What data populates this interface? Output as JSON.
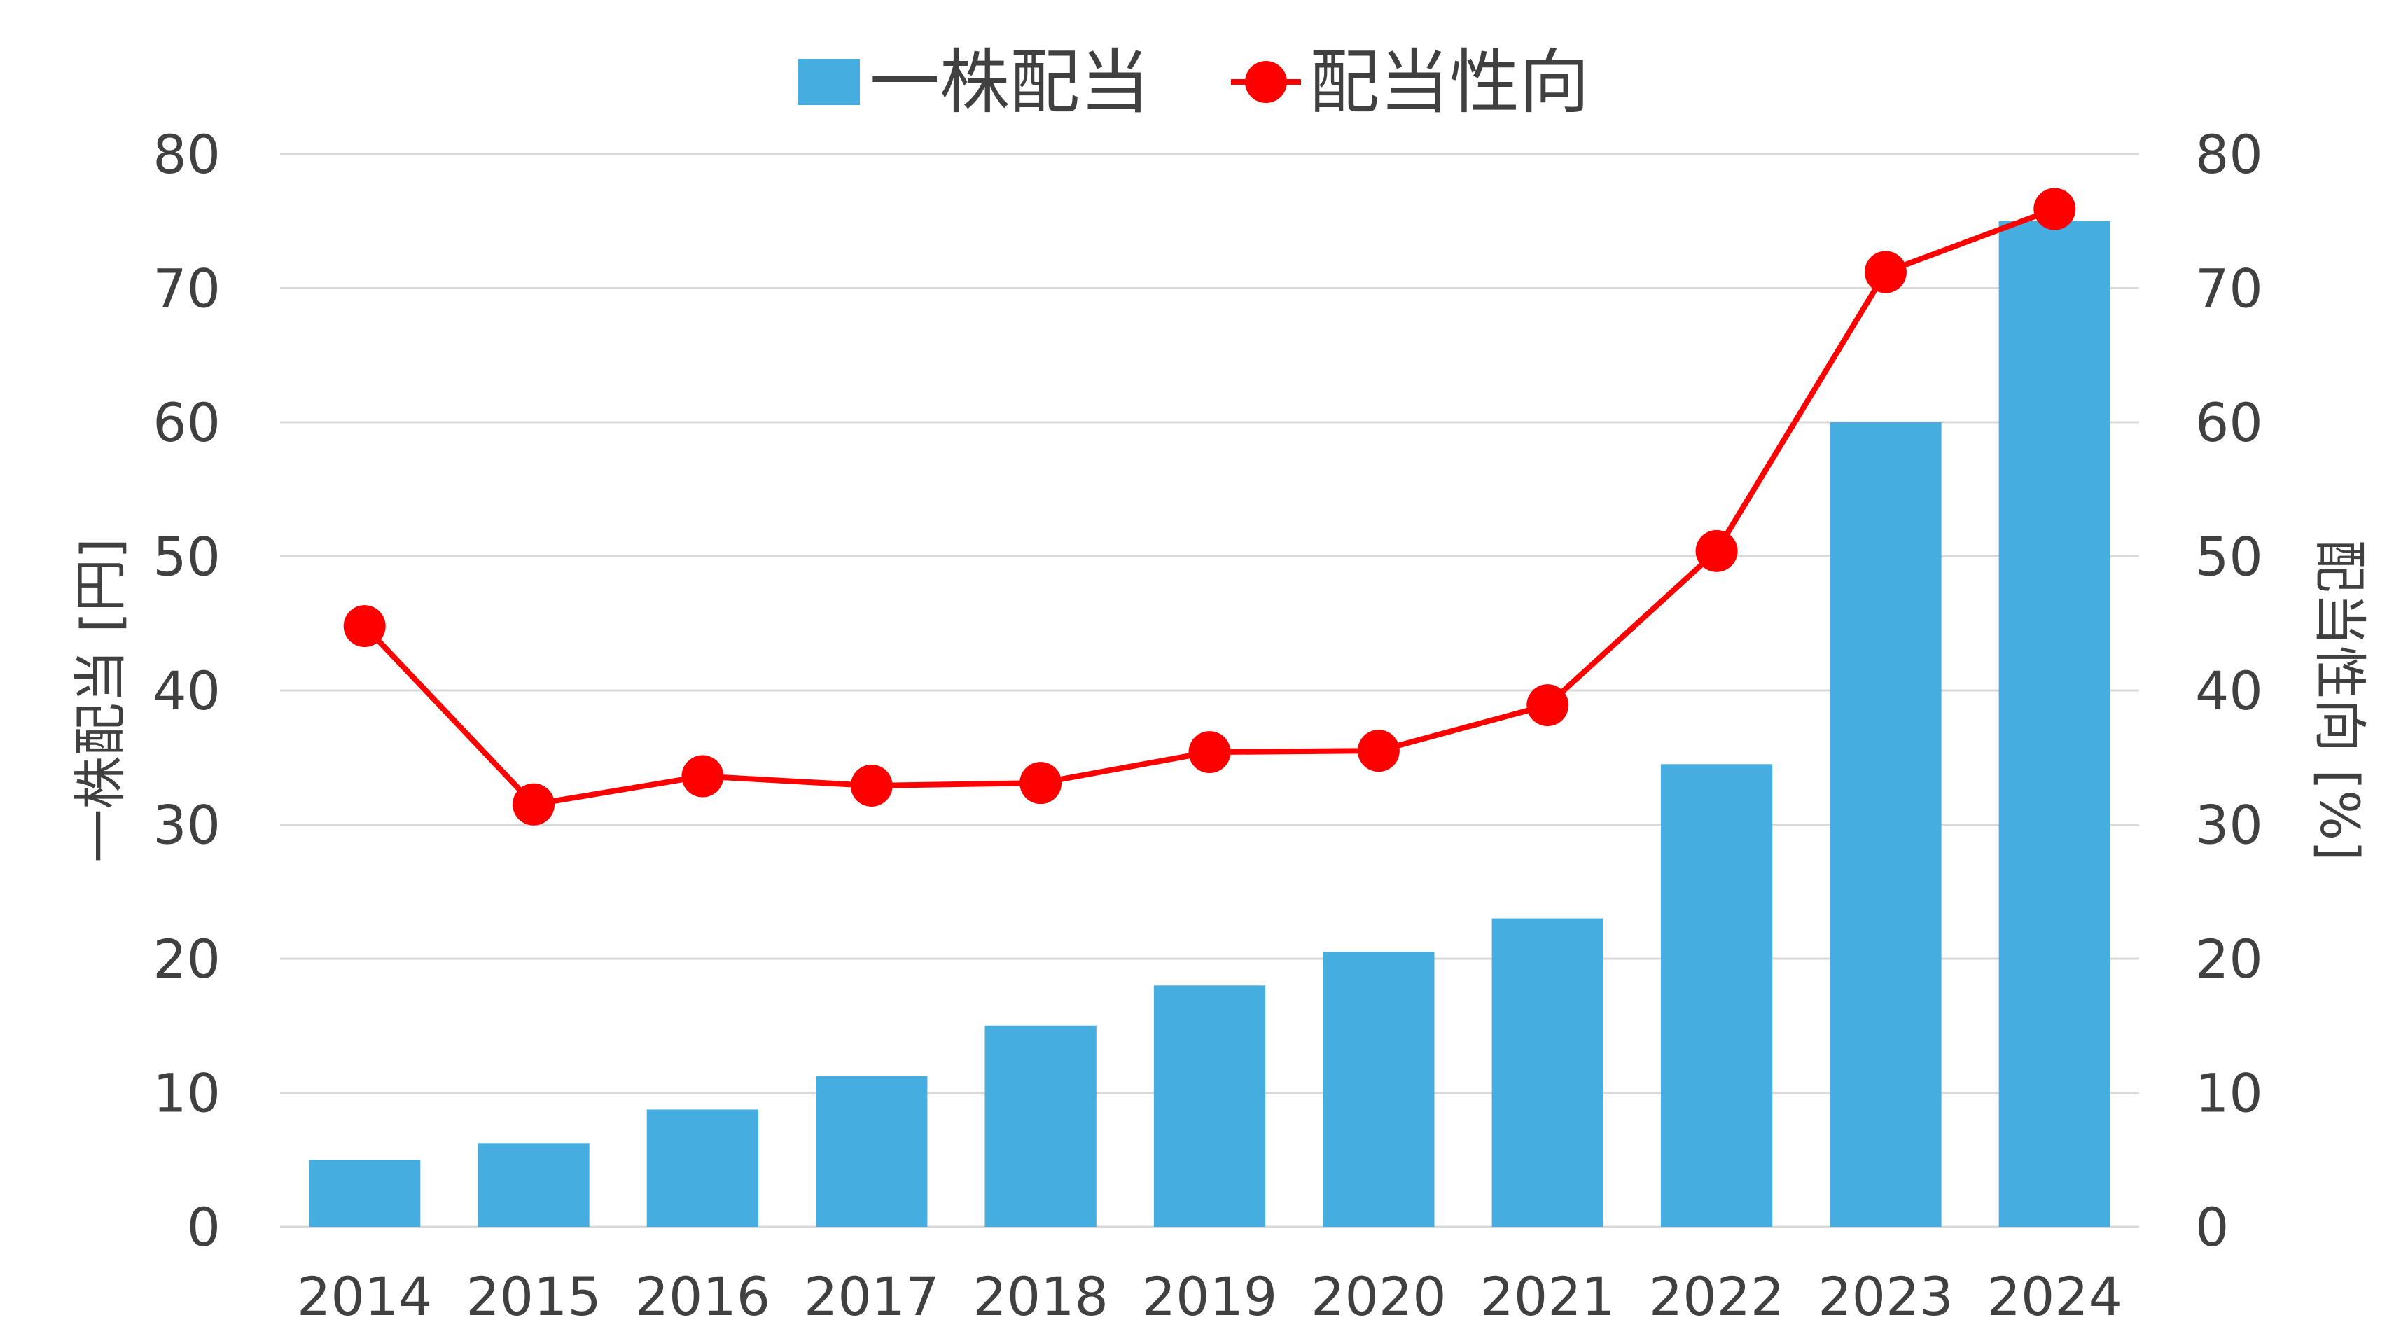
{
  "chart_data": {
    "type": "bar",
    "categories": [
      "2014",
      "2015",
      "2016",
      "2017",
      "2018",
      "2019",
      "2020",
      "2021",
      "2022",
      "2023",
      "2024"
    ],
    "series": [
      {
        "name": "一株配当",
        "type": "bar",
        "axis": "left",
        "values": [
          5,
          6.25,
          8.75,
          11.25,
          15,
          18,
          20.5,
          23,
          34.5,
          60,
          75
        ]
      },
      {
        "name": "配当性向",
        "type": "line",
        "axis": "right",
        "values": [
          44.8,
          31.5,
          33.6,
          32.9,
          33.1,
          35.4,
          35.5,
          38.9,
          50.4,
          71.2,
          75.9
        ]
      }
    ],
    "ylabel": "一株配当 [円]",
    "y2label": "配当性向 [%]",
    "ylim": [
      0,
      80
    ],
    "y2lim": [
      0,
      80
    ],
    "yticks": [
      0,
      10,
      20,
      30,
      40,
      50,
      60,
      70,
      80
    ],
    "y2ticks": [
      0,
      10,
      20,
      30,
      40,
      50,
      60,
      70,
      80
    ],
    "grid": true,
    "legend_position": "top-center",
    "colors": {
      "bar": "#45ADE0",
      "line": "#FF0000",
      "grid": "#D9D9D9",
      "text": "#404040"
    }
  }
}
